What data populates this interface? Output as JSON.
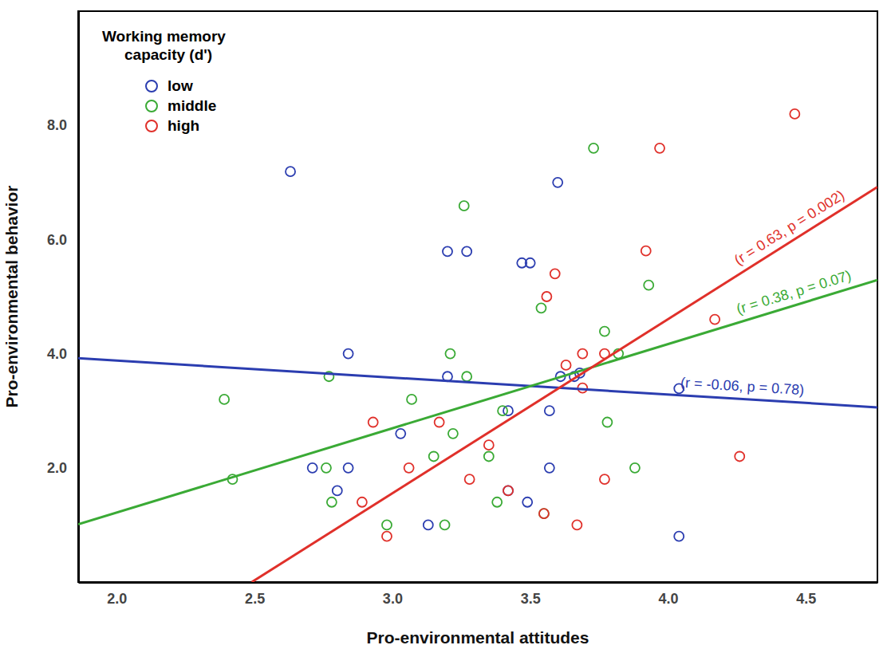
{
  "chart_data": {
    "type": "scatter",
    "x_label": "Pro-environmental attitudes",
    "y_label": "Pro-environmental behavior",
    "legend": "upper left",
    "legend_title": [
      "Working memory",
      "capacity (d')"
    ],
    "marker": "circle-open",
    "grid": false,
    "xlim": [
      1.86,
      4.76
    ],
    "ylim": [
      0,
      10
    ],
    "xticks": [
      {
        "value": 2.0,
        "label": "2.0"
      },
      {
        "value": 2.5,
        "label": "2.5"
      },
      {
        "value": 3.0,
        "label": "3.0"
      },
      {
        "value": 3.5,
        "label": "3.5"
      },
      {
        "value": 4.0,
        "label": "4.0"
      },
      {
        "value": 4.5,
        "label": "4.5"
      }
    ],
    "yticks": [
      {
        "value": 2.0,
        "label": "2.0"
      },
      {
        "value": 4.0,
        "label": "4.0"
      },
      {
        "value": 6.0,
        "label": "6.0"
      },
      {
        "value": 8.0,
        "label": "8.0"
      }
    ],
    "series": [
      {
        "name": "low",
        "color": "#2b3db0",
        "x": [
          2.63,
          3.6,
          3.2,
          3.27,
          3.47,
          3.5,
          2.84,
          3.2,
          3.61,
          3.66,
          3.68,
          4.04,
          3.42,
          3.57,
          3.03,
          2.71,
          2.84,
          2.8,
          3.42,
          3.49,
          3.13,
          3.57,
          4.04
        ],
        "values": [
          7.19,
          7.0,
          5.79,
          5.79,
          5.59,
          5.59,
          4.0,
          3.6,
          3.6,
          3.6,
          3.66,
          3.39,
          3.0,
          3.0,
          2.6,
          2.0,
          2.0,
          1.6,
          1.6,
          1.4,
          1.0,
          2.0,
          0.8
        ],
        "fit": {
          "x": [
            1.86,
            4.76
          ],
          "y": [
            3.92,
            3.06
          ],
          "label": "(r = -0.06, p = 0.78)"
        }
      },
      {
        "name": "middle",
        "color": "#3aaa35",
        "x": [
          3.73,
          3.26,
          3.93,
          3.54,
          3.77,
          3.21,
          3.82,
          2.77,
          3.27,
          2.39,
          3.07,
          3.4,
          3.22,
          3.78,
          3.15,
          3.35,
          2.76,
          3.88,
          2.42,
          2.78,
          3.38,
          3.55,
          2.98,
          3.19
        ],
        "values": [
          7.6,
          6.59,
          5.2,
          4.8,
          4.39,
          4.0,
          4.0,
          3.6,
          3.6,
          3.2,
          3.2,
          3.0,
          2.6,
          2.8,
          2.2,
          2.2,
          2.0,
          2.0,
          1.8,
          1.4,
          1.4,
          1.2,
          1.0,
          1.0
        ],
        "fit": {
          "x": [
            1.86,
            4.76
          ],
          "y": [
            1.01,
            5.29
          ],
          "label": "(r = 0.38, p = 0.07)"
        }
      },
      {
        "name": "high",
        "color": "#e0302a",
        "x": [
          4.46,
          3.97,
          3.92,
          3.59,
          3.56,
          4.17,
          3.63,
          3.69,
          3.77,
          3.69,
          2.93,
          3.17,
          3.06,
          3.35,
          3.28,
          4.26,
          3.77,
          3.42,
          2.89,
          3.55,
          3.67,
          2.98
        ],
        "values": [
          8.2,
          7.6,
          5.8,
          5.4,
          5.0,
          4.6,
          3.8,
          4.0,
          4.0,
          3.4,
          2.8,
          2.8,
          2.0,
          2.4,
          1.8,
          2.2,
          1.8,
          1.6,
          1.4,
          1.2,
          1.0,
          0.8
        ],
        "fit": {
          "x": [
            2.49,
            4.76
          ],
          "y": [
            0.0,
            6.92
          ],
          "label": "(r = 0.63, p = 0.002)"
        }
      }
    ]
  }
}
